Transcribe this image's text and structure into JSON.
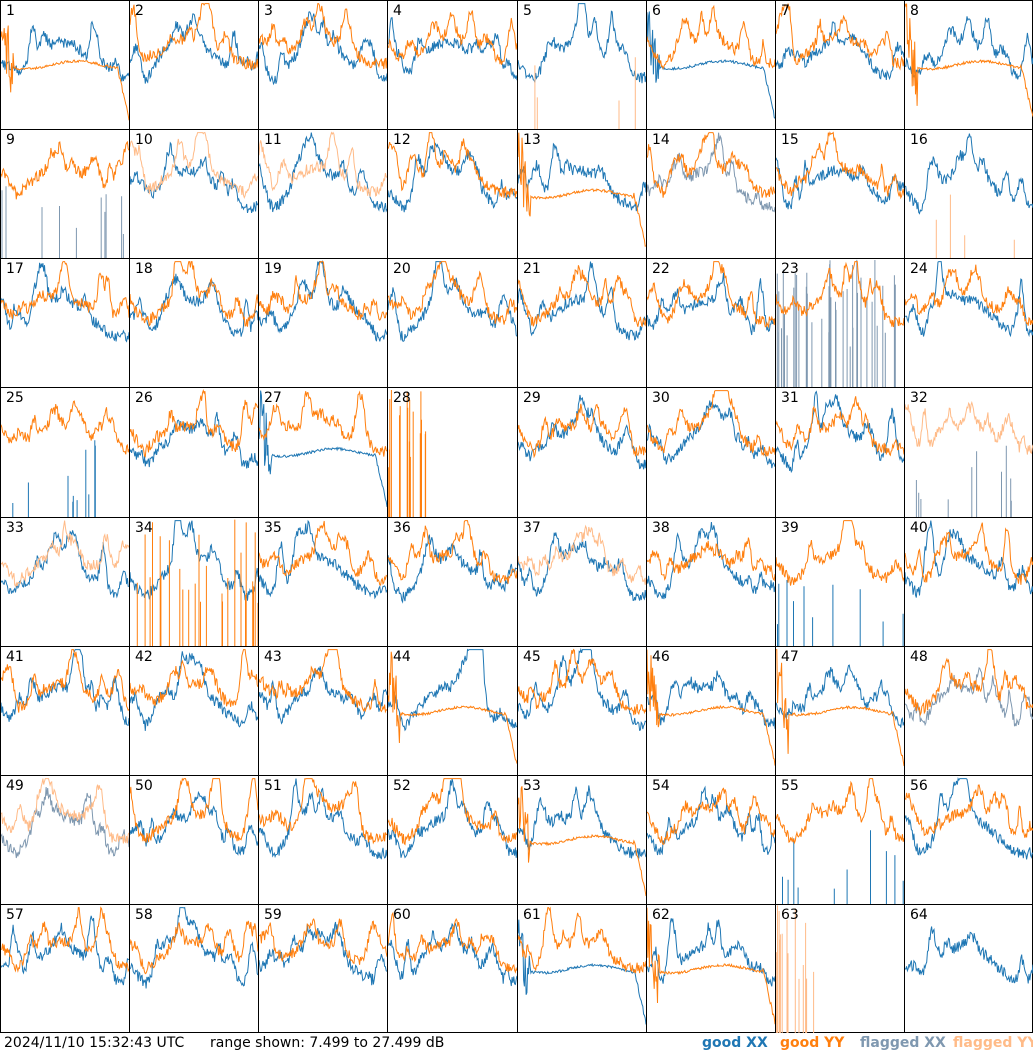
{
  "chart_data": {
    "type": "line",
    "layout": "8x8 small multiples",
    "panels": [
      {
        "id": 1,
        "xx": "good",
        "yy": "good",
        "style": "yy_drop"
      },
      {
        "id": 2,
        "xx": "good",
        "yy": "good",
        "style": "normal"
      },
      {
        "id": 3,
        "xx": "good",
        "yy": "good",
        "style": "normal"
      },
      {
        "id": 4,
        "xx": "good",
        "yy": "good",
        "style": "normal"
      },
      {
        "id": 5,
        "xx": "good",
        "yy": "flagged",
        "style": "yy_spikes"
      },
      {
        "id": 6,
        "xx": "good",
        "yy": "good",
        "style": "xx_drop"
      },
      {
        "id": 7,
        "xx": "good",
        "yy": "good",
        "style": "normal"
      },
      {
        "id": 8,
        "xx": "good",
        "yy": "good",
        "style": "yy_drop"
      },
      {
        "id": 9,
        "xx": "flagged",
        "yy": "good",
        "style": "xx_spikes"
      },
      {
        "id": 10,
        "xx": "good",
        "yy": "flagged",
        "style": "normal"
      },
      {
        "id": 11,
        "xx": "good",
        "yy": "flagged",
        "style": "normal"
      },
      {
        "id": 12,
        "xx": "good",
        "yy": "good",
        "style": "normal"
      },
      {
        "id": 13,
        "xx": "good",
        "yy": "good",
        "style": "yy_drop"
      },
      {
        "id": 14,
        "xx": "flagged",
        "yy": "good",
        "style": "normal"
      },
      {
        "id": 15,
        "xx": "good",
        "yy": "good",
        "style": "normal"
      },
      {
        "id": 16,
        "xx": "good",
        "yy": "flagged",
        "style": "yy_spikes"
      },
      {
        "id": 17,
        "xx": "good",
        "yy": "good",
        "style": "normal"
      },
      {
        "id": 18,
        "xx": "good",
        "yy": "good",
        "style": "normal"
      },
      {
        "id": 19,
        "xx": "good",
        "yy": "good",
        "style": "normal"
      },
      {
        "id": 20,
        "xx": "good",
        "yy": "good",
        "style": "normal"
      },
      {
        "id": 21,
        "xx": "good",
        "yy": "good",
        "style": "normal"
      },
      {
        "id": 22,
        "xx": "good",
        "yy": "good",
        "style": "normal"
      },
      {
        "id": 23,
        "xx": "flagged",
        "yy": "good",
        "style": "xx_spikes"
      },
      {
        "id": 24,
        "xx": "good",
        "yy": "good",
        "style": "normal"
      },
      {
        "id": 25,
        "xx": "good",
        "yy": "good",
        "style": "xx_spikes"
      },
      {
        "id": 26,
        "xx": "good",
        "yy": "good",
        "style": "normal"
      },
      {
        "id": 27,
        "xx": "good",
        "yy": "good",
        "style": "xx_drop"
      },
      {
        "id": 28,
        "xx": "good",
        "yy": "good",
        "style": "yy_spikes"
      },
      {
        "id": 29,
        "xx": "good",
        "yy": "good",
        "style": "normal"
      },
      {
        "id": 30,
        "xx": "good",
        "yy": "good",
        "style": "normal"
      },
      {
        "id": 31,
        "xx": "good",
        "yy": "good",
        "style": "normal"
      },
      {
        "id": 32,
        "xx": "flagged",
        "yy": "flagged",
        "style": "xx_spikes"
      },
      {
        "id": 33,
        "xx": "good",
        "yy": "flagged",
        "style": "normal"
      },
      {
        "id": 34,
        "xx": "good",
        "yy": "good",
        "style": "yy_spikes"
      },
      {
        "id": 35,
        "xx": "good",
        "yy": "good",
        "style": "normal"
      },
      {
        "id": 36,
        "xx": "good",
        "yy": "good",
        "style": "normal"
      },
      {
        "id": 37,
        "xx": "good",
        "yy": "flagged",
        "style": "normal"
      },
      {
        "id": 38,
        "xx": "good",
        "yy": "good",
        "style": "normal"
      },
      {
        "id": 39,
        "xx": "good",
        "yy": "good",
        "style": "xx_spikes"
      },
      {
        "id": 40,
        "xx": "good",
        "yy": "good",
        "style": "normal"
      },
      {
        "id": 41,
        "xx": "good",
        "yy": "good",
        "style": "normal"
      },
      {
        "id": 42,
        "xx": "good",
        "yy": "good",
        "style": "normal"
      },
      {
        "id": 43,
        "xx": "good",
        "yy": "good",
        "style": "normal"
      },
      {
        "id": 44,
        "xx": "good",
        "yy": "good",
        "style": "yy_drop"
      },
      {
        "id": 45,
        "xx": "good",
        "yy": "good",
        "style": "normal"
      },
      {
        "id": 46,
        "xx": "good",
        "yy": "good",
        "style": "yy_drop"
      },
      {
        "id": 47,
        "xx": "good",
        "yy": "good",
        "style": "yy_drop"
      },
      {
        "id": 48,
        "xx": "flagged",
        "yy": "good",
        "style": "normal"
      },
      {
        "id": 49,
        "xx": "flagged",
        "yy": "flagged",
        "style": "normal"
      },
      {
        "id": 50,
        "xx": "good",
        "yy": "good",
        "style": "normal"
      },
      {
        "id": 51,
        "xx": "good",
        "yy": "good",
        "style": "normal"
      },
      {
        "id": 52,
        "xx": "good",
        "yy": "good",
        "style": "normal"
      },
      {
        "id": 53,
        "xx": "good",
        "yy": "good",
        "style": "yy_drop"
      },
      {
        "id": 54,
        "xx": "good",
        "yy": "good",
        "style": "normal"
      },
      {
        "id": 55,
        "xx": "good",
        "yy": "good",
        "style": "xx_spikes"
      },
      {
        "id": 56,
        "xx": "good",
        "yy": "good",
        "style": "normal"
      },
      {
        "id": 57,
        "xx": "good",
        "yy": "good",
        "style": "normal"
      },
      {
        "id": 58,
        "xx": "good",
        "yy": "good",
        "style": "normal"
      },
      {
        "id": 59,
        "xx": "good",
        "yy": "good",
        "style": "normal"
      },
      {
        "id": 60,
        "xx": "good",
        "yy": "good",
        "style": "normal"
      },
      {
        "id": 61,
        "xx": "good",
        "yy": "good",
        "style": "xx_drop"
      },
      {
        "id": 62,
        "xx": "good",
        "yy": "good",
        "style": "yy_drop"
      },
      {
        "id": 63,
        "xx": "good",
        "yy": "flagged",
        "style": "yy_spikes"
      },
      {
        "id": 64,
        "xx": "good",
        "yy": "good",
        "style": "xx_only"
      }
    ],
    "ylim": [
      7.499,
      27.499
    ],
    "legend_placement": "bottom-right",
    "grid": false
  },
  "footer": {
    "timestamp": "2024/11/10 15:32:43 UTC",
    "range_text": "range shown: 7.499 to 27.499 dB",
    "legend": [
      {
        "key": "good_xx",
        "label": "good XX",
        "color": "#1f77b4"
      },
      {
        "key": "good_yy",
        "label": "good YY",
        "color": "#ff7f0e"
      },
      {
        "key": "flagged_xx",
        "label": "flagged XX",
        "color": "#7f98b0"
      },
      {
        "key": "flagged_yy",
        "label": "flagged YY",
        "color": "#ffbb88"
      }
    ]
  },
  "colors": {
    "good_xx": "#1f77b4",
    "good_yy": "#ff7f0e",
    "flagged_xx": "#7f98b0",
    "flagged_yy": "#ffbb88"
  }
}
